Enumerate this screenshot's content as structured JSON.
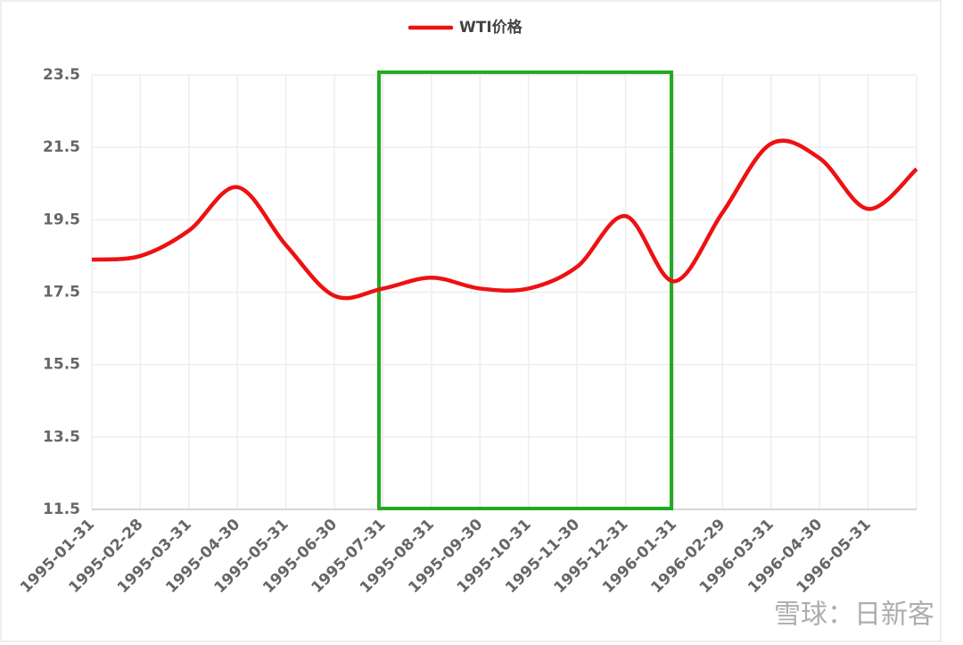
{
  "chart_data": {
    "type": "line",
    "legend_position": "top",
    "categories": [
      "1995-01-31",
      "1995-02-28",
      "1995-03-31",
      "1995-04-30",
      "1995-05-31",
      "1995-06-30",
      "1995-07-31",
      "1995-08-31",
      "1995-09-30",
      "1995-10-31",
      "1995-11-30",
      "1995-12-31",
      "1996-01-31",
      "1996-02-29",
      "1996-03-31",
      "1996-04-30",
      "1996-05-31",
      null
    ],
    "series": [
      {
        "name": "WTI价格",
        "color": "#ee1111",
        "values": [
          18.4,
          18.5,
          19.2,
          20.4,
          18.8,
          17.4,
          17.6,
          17.9,
          17.6,
          17.6,
          18.2,
          19.6,
          17.8,
          19.7,
          21.6,
          21.2,
          19.8,
          20.9
        ]
      }
    ],
    "ylim": [
      11.5,
      23.5
    ],
    "yticks": [
      11.5,
      13.5,
      15.5,
      17.5,
      19.5,
      21.5,
      23.5
    ],
    "grid": true,
    "watermark": "雪球：日新客"
  }
}
